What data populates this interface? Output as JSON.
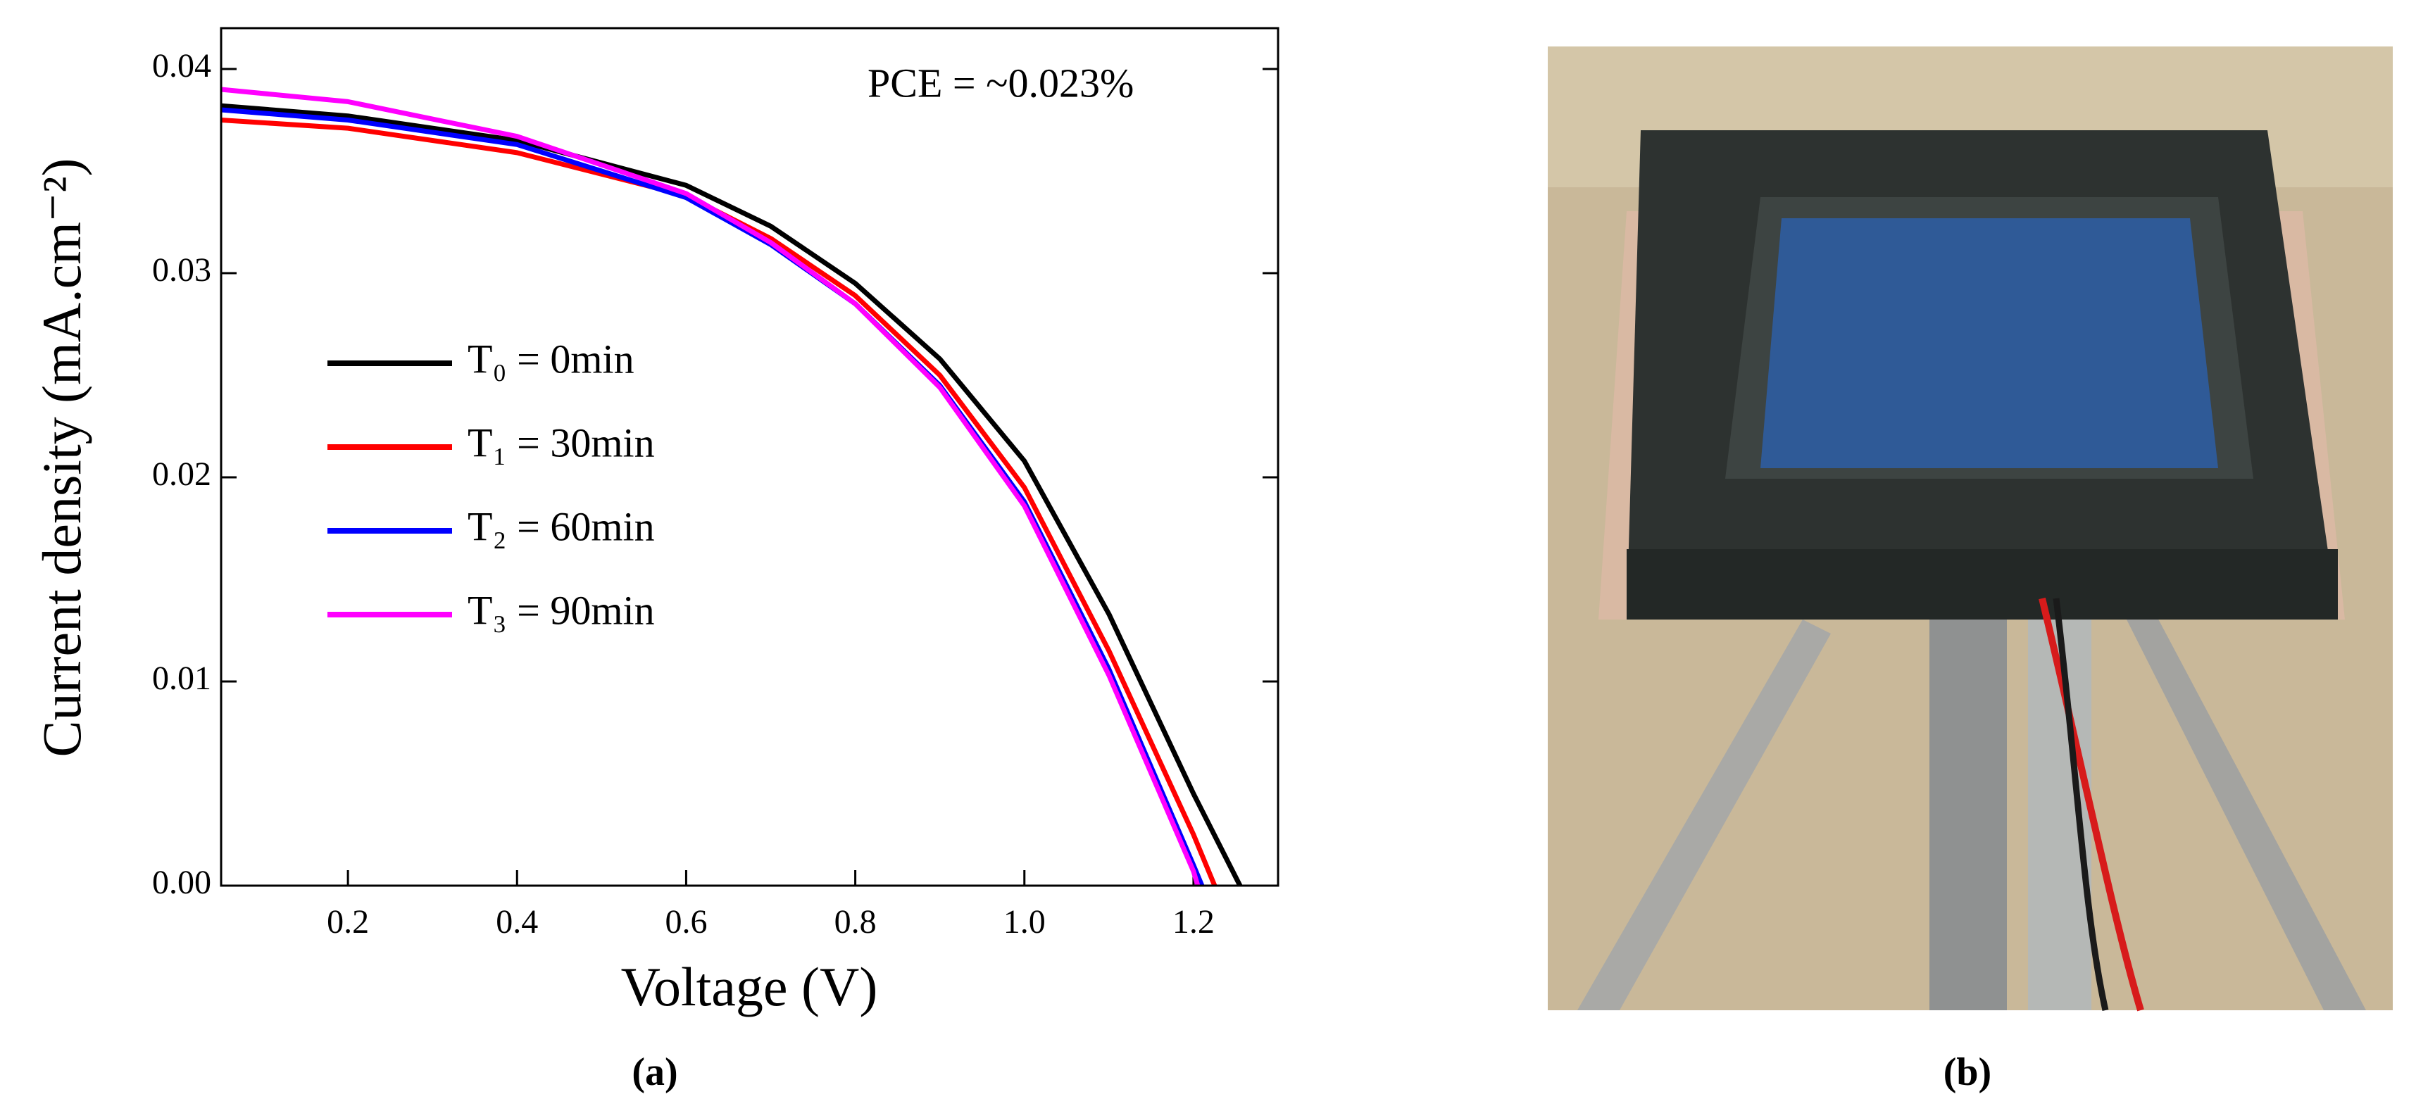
{
  "chart_data": {
    "type": "line",
    "x_label": "Voltage (V)",
    "y_label": "Current density (mA.cm⁻²)",
    "annotation": "PCE = ~0.023%",
    "caption": "(a)",
    "xlim": [
      0.05,
      1.3
    ],
    "ylim": [
      0,
      0.042
    ],
    "xticks": [
      0.2,
      0.4,
      0.6,
      0.8,
      {
        "value": 1,
        "label": "1.0"
      },
      1.2
    ],
    "yticks": [
      {
        "value": 0,
        "label": "0.00"
      },
      {
        "value": 0.01,
        "label": "0.01"
      },
      {
        "value": 0.02,
        "label": "0.02"
      },
      {
        "value": 0.03,
        "label": "0.03"
      },
      {
        "value": 0.04,
        "label": "0.04"
      }
    ],
    "series": [
      {
        "name": "T₀ = 0min",
        "color": "#000000",
        "x": [
          0.05,
          0.2,
          0.4,
          0.6,
          0.7,
          0.8,
          0.9,
          1.0,
          1.1,
          1.2,
          1.255
        ],
        "values": [
          0.0382,
          0.0377,
          0.0365,
          0.0343,
          0.0323,
          0.0295,
          0.0258,
          0.0208,
          0.0133,
          0.0045,
          0
        ]
      },
      {
        "name": "T₁ = 30min",
        "color": "#ff0000",
        "x": [
          0.05,
          0.2,
          0.4,
          0.6,
          0.7,
          0.8,
          0.9,
          1.0,
          1.1,
          1.2,
          1.225
        ],
        "values": [
          0.0375,
          0.0371,
          0.0359,
          0.0338,
          0.0317,
          0.0289,
          0.025,
          0.0195,
          0.0115,
          0.0025,
          0
        ]
      },
      {
        "name": "T₂ = 60min",
        "color": "#0000ff",
        "x": [
          0.05,
          0.2,
          0.4,
          0.6,
          0.7,
          0.8,
          0.9,
          1.0,
          1.1,
          1.2,
          1.21
        ],
        "values": [
          0.038,
          0.0375,
          0.0363,
          0.0337,
          0.0314,
          0.0285,
          0.0245,
          0.0188,
          0.0106,
          0.001,
          0
        ]
      },
      {
        "name": "T₃ = 90min",
        "color": "#ff00ff",
        "x": [
          0.05,
          0.2,
          0.4,
          0.6,
          0.7,
          0.8,
          0.9,
          1.0,
          1.1,
          1.2,
          1.205
        ],
        "values": [
          0.039,
          0.0384,
          0.0367,
          0.0339,
          0.0315,
          0.0285,
          0.0244,
          0.0186,
          0.0103,
          0.0007,
          0
        ]
      }
    ]
  },
  "photo": {
    "caption": "(b)"
  }
}
